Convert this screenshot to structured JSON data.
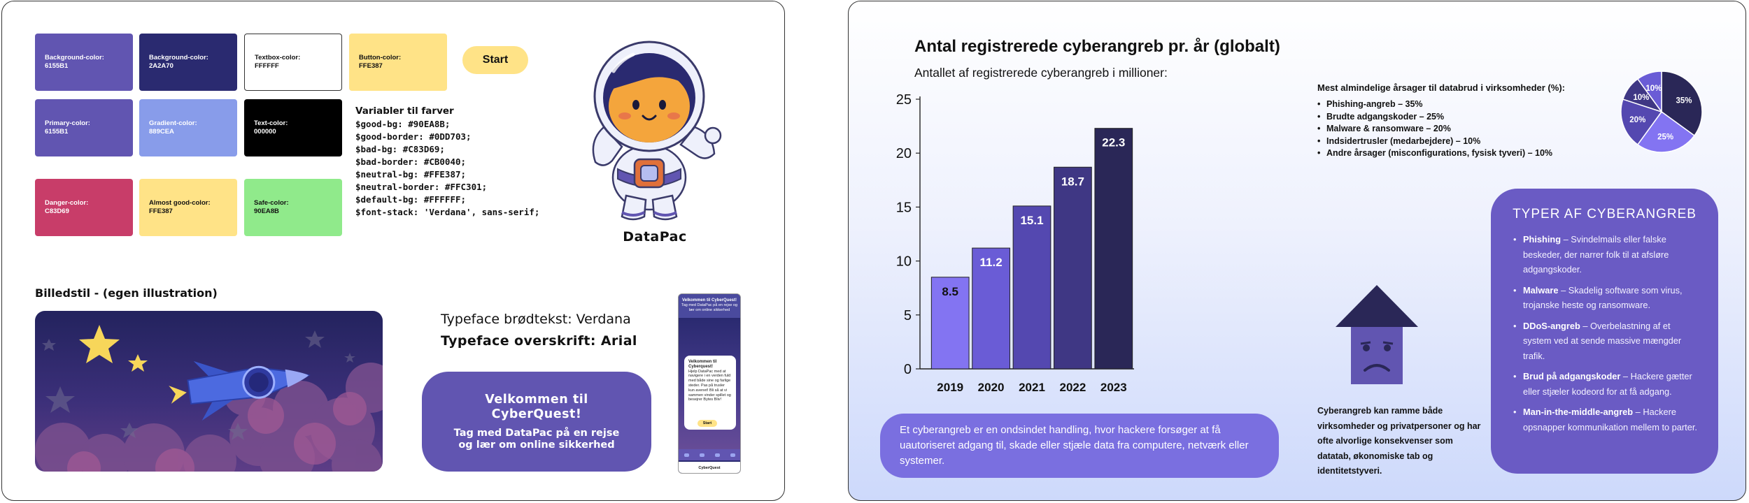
{
  "left_board": {
    "swatches": [
      {
        "label": "Background-color:",
        "value": "6155B1",
        "bg": "#6155B1",
        "fg": "#ffffff"
      },
      {
        "label": "Background-color:",
        "value": "2A2A70",
        "bg": "#2A2A70",
        "fg": "#ffffff"
      },
      {
        "label": "Textbox-color:",
        "value": "FFFFFF",
        "bg": "#FFFFFF",
        "fg": "#111111"
      },
      {
        "label": "Button-color:",
        "value": "FFE387",
        "bg": "#FFE387",
        "fg": "#111111"
      },
      {
        "label": "Primary-color:",
        "value": "6155B1",
        "bg": "#6155B1",
        "fg": "#ffffff"
      },
      {
        "label": "Gradient-color:",
        "value": "889CEA",
        "bg": "#889CEA",
        "fg": "#ffffff"
      },
      {
        "label": "Text-color:",
        "value": "000000",
        "bg": "#000000",
        "fg": "#ffffff"
      },
      {
        "label": "Danger-color:",
        "value": "C83D69",
        "bg": "#C83D69",
        "fg": "#ffffff"
      },
      {
        "label": "Almost good-color:",
        "value": "FFE387",
        "bg": "#FFE387",
        "fg": "#111111"
      },
      {
        "label": "Safe-color:",
        "value": "90EA8B",
        "bg": "#90EA8B",
        "fg": "#111111"
      }
    ],
    "start_button": "Start",
    "variables": {
      "title": "Variabler til farver",
      "lines": [
        "$good-bg: #90EA8B;",
        "$good-border: #0DD703;",
        "$bad-bg: #C83D69;",
        "$bad-border: #CB0040;",
        "$neutral-bg: #FFE387;",
        "$neutral-border: #FFC301;",
        "$default-bg: #FFFFFF;",
        "$font-stack: 'Verdana', sans-serif;"
      ]
    },
    "mascot_name": "DataPac",
    "illustration_title": "Billedstil - (egen illustration)",
    "typeface_body": "Typeface brødtekst: Verdana",
    "typeface_heading": "Typeface overskrift: Arial",
    "welcome_card": {
      "title": "Velkommen til CyberQuest!",
      "text": "Tag med DataPac på en rejse og lær om online sikkerhed"
    },
    "phone": {
      "header_title": "Velkommen til CyberQuest!",
      "header_text": "Tag med DataPac på en rejse og lær om online sikkerhed",
      "card_title": "Velkommen til Cyberquest!",
      "card_text": "Hjelp DataPac med at navigere i en verden fuld med både sine og farlige steder. Pas på trusler kun avenet! Bli så at vi sammen vinder spillet og besejrer Bytes Bliv!",
      "start": "Start",
      "footer": "CyberQuest"
    }
  },
  "right_board": {
    "title": "Antal registrerede cyberangreb pr. år (globalt)",
    "subtitle": "Antallet af registrerede cyberangreb i millioner:",
    "definition": "Et cyberangreb er en ondsindet handling, hvor hackere forsøger at få uautoriseret adgang til, skade eller stjæle data fra computere, netværk eller systemer.",
    "causes_title": "Mest almindelige årsager til databrud i virksomheder (%):",
    "causes": [
      "Phishing-angreb – 35%",
      "Brudte adgangskoder – 25%",
      "Malware & ransomware – 20%",
      "Indsidertrusler (medarbejdere) – 10%",
      "Andre årsager (misconfigurations, fysisk tyveri) – 10%"
    ],
    "house_text": "Cyberangreb kan ramme både virksomheder og privatpersoner og har ofte alvorlige konsekvenser som datatab, økonomiske tab og identitetstyveri.",
    "types_title": "TYPER AF CYBERANGREB",
    "types": [
      {
        "name": "Phishing",
        "desc": " – Svindelmails eller falske beskeder, der narrer folk til at afsløre adgangskoder."
      },
      {
        "name": "Malware",
        "desc": " – Skadelig software som virus, trojanske heste og ransomware."
      },
      {
        "name": "DDoS-angreb",
        "desc": " – Overbelastning af et system ved at sende massive mængder trafik."
      },
      {
        "name": "Brud på adgangskoder",
        "desc": " – Hackere gætter eller stjæler kodeord for at få adgang."
      },
      {
        "name": "Man-in-the-middle-angreb",
        "desc": " – Hackere opsnapper kommunikation mellem to parter."
      }
    ]
  },
  "chart_data": [
    {
      "type": "bar",
      "title": "Antal registrerede cyberangreb pr. år (globalt)",
      "subtitle": "Antallet af registrerede cyberangreb i millioner:",
      "categories": [
        "2019",
        "2020",
        "2021",
        "2022",
        "2023"
      ],
      "values": [
        8.5,
        11.2,
        15.1,
        18.7,
        22.3
      ],
      "ylim": [
        0,
        25
      ],
      "yticks": [
        0,
        5,
        10,
        15,
        20,
        25
      ],
      "colors": [
        "#8374F2",
        "#6A5CD6",
        "#5448B0",
        "#3F3784",
        "#2A2757"
      ],
      "grid": false
    },
    {
      "type": "pie",
      "labels": [
        "35%",
        "25%",
        "20%",
        "10%",
        "10%"
      ],
      "values": [
        35,
        25,
        20,
        10,
        10
      ],
      "colors": [
        "#2A2757",
        "#8374F2",
        "#5448B0",
        "#3F3784",
        "#6A5CD6"
      ]
    }
  ]
}
